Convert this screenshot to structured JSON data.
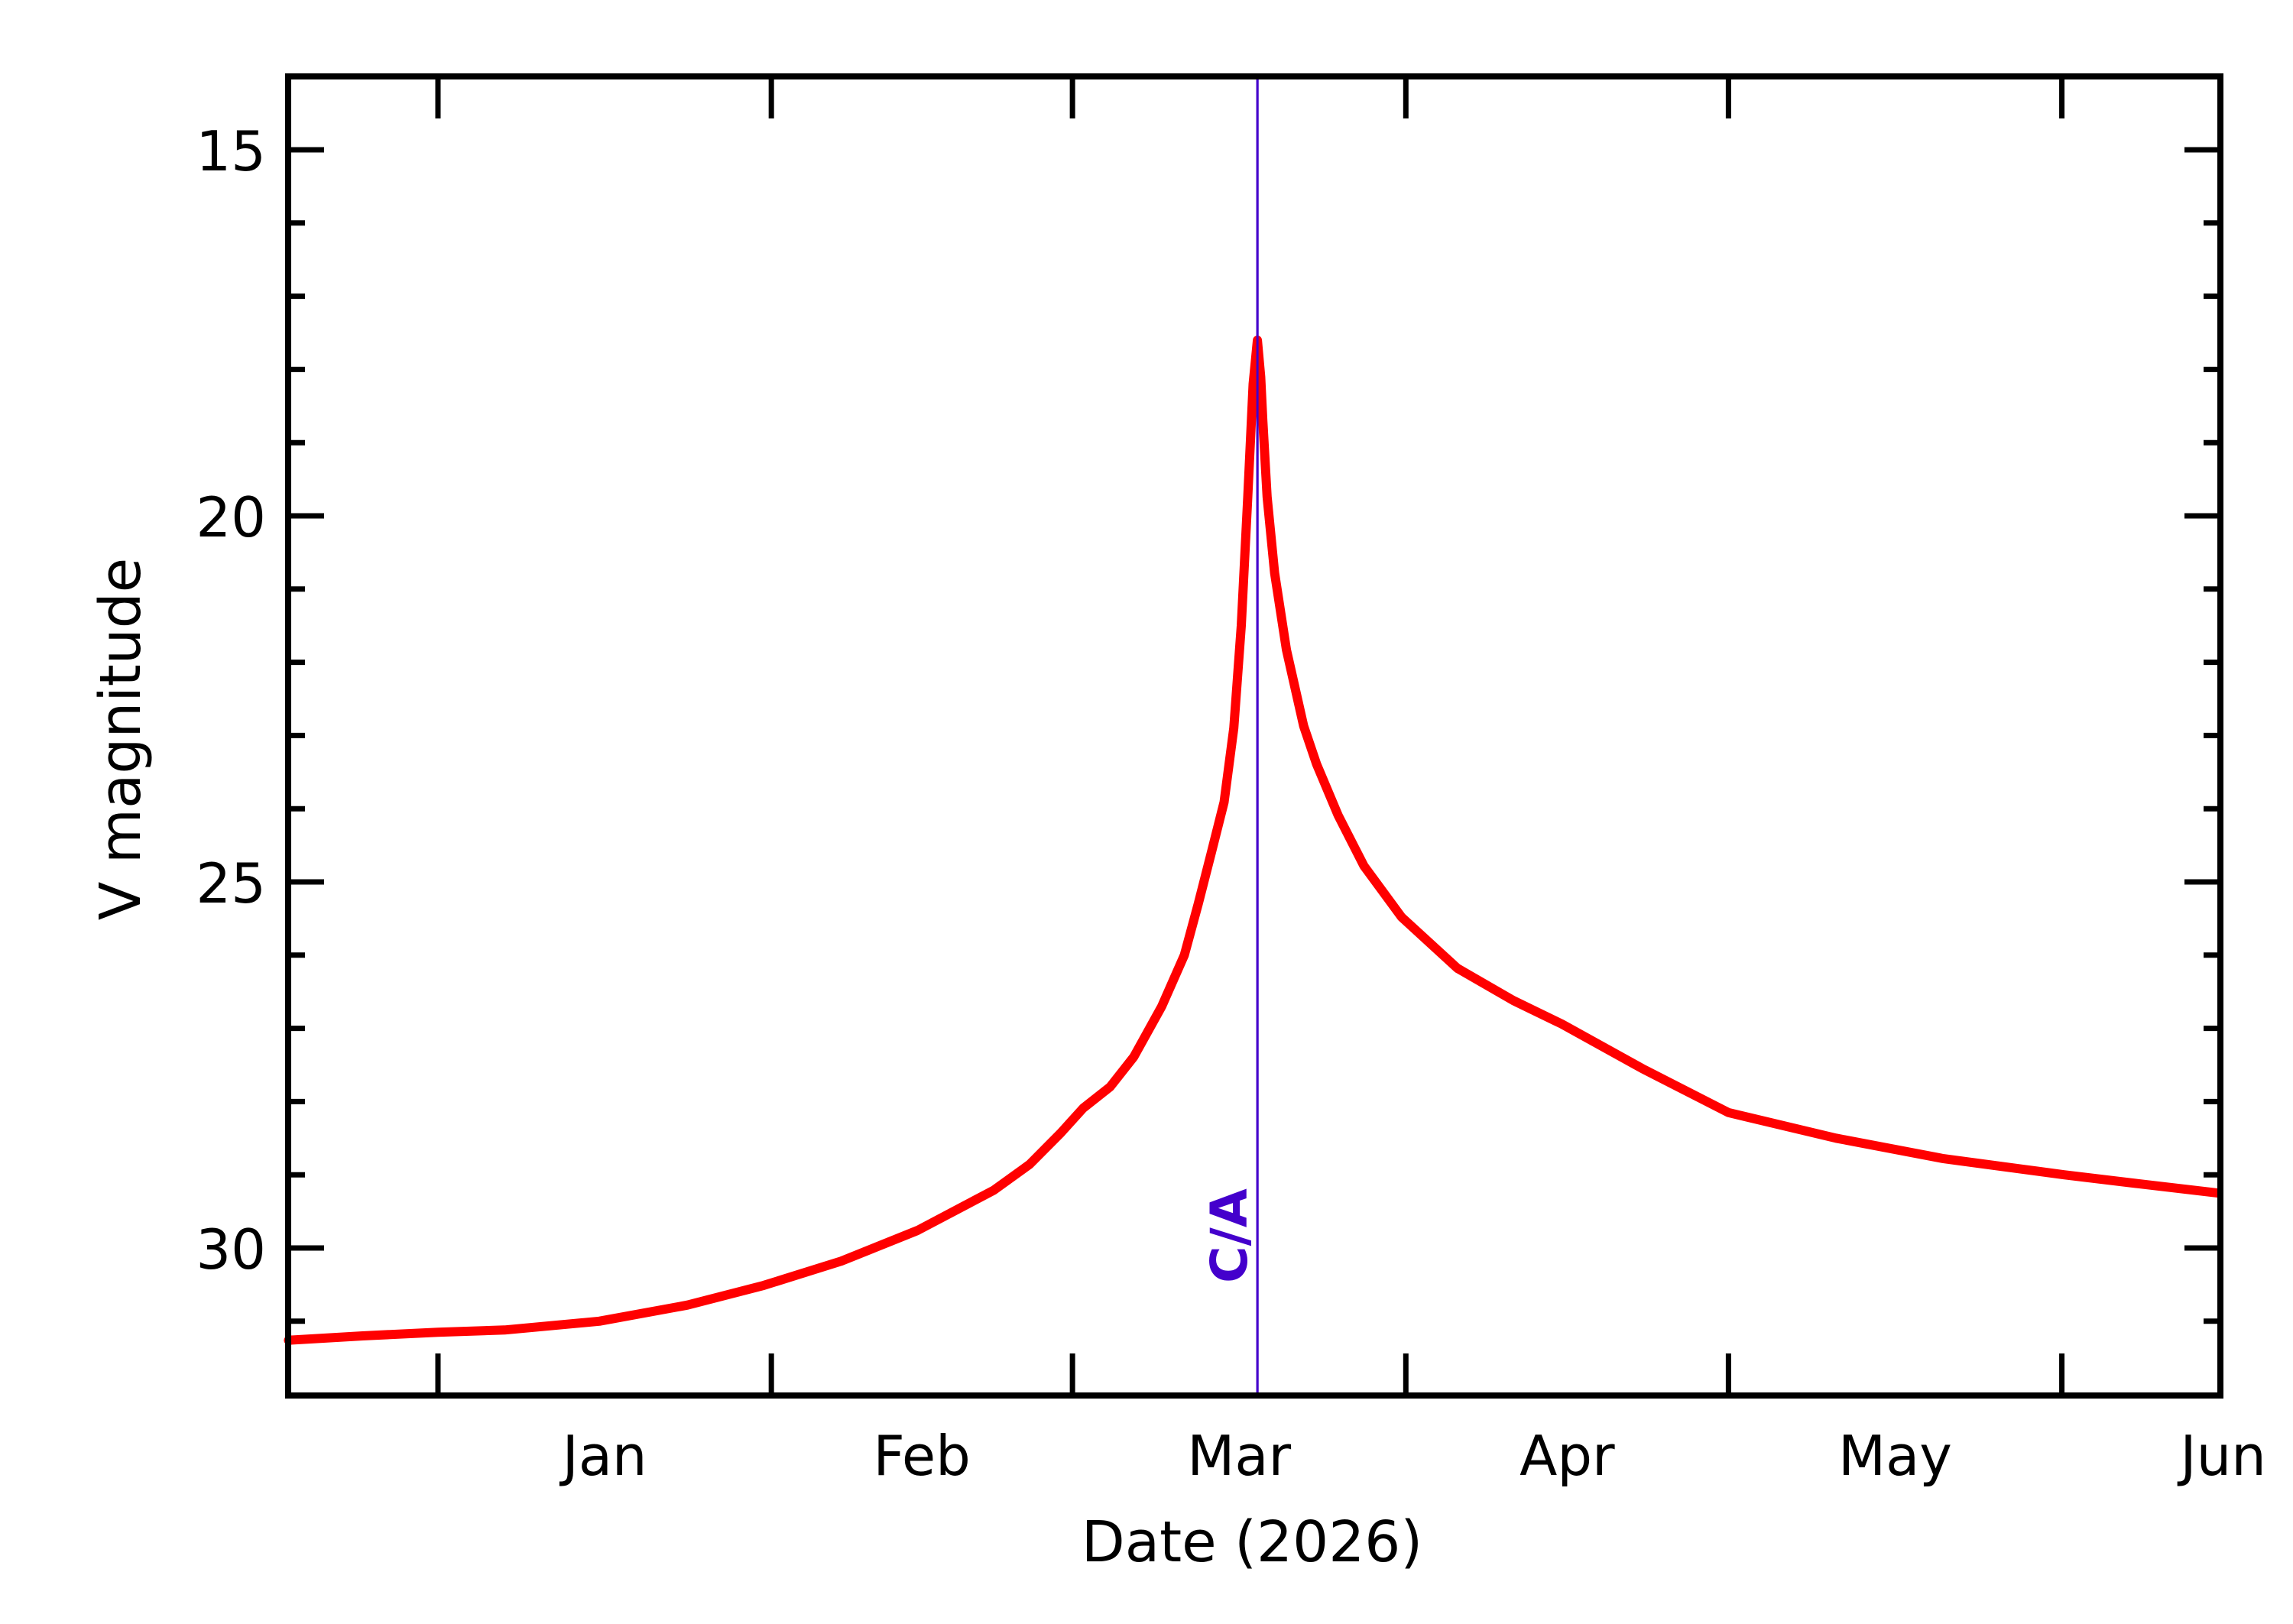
{
  "chart_data": {
    "type": "line",
    "title": "",
    "xlabel": "Date (2026)",
    "ylabel": "V magnitude",
    "y_inverted": true,
    "ylim": [
      32,
      14
    ],
    "xlim_dates": [
      "2025-12-18",
      "2026-06-16"
    ],
    "grid": false,
    "legend": null,
    "x_ticks": [
      {
        "date": "2026-01-01",
        "day": 0
      },
      {
        "date": "2026-02-01",
        "day": 31
      },
      {
        "date": "2026-03-01",
        "day": 59
      },
      {
        "date": "2026-04-01",
        "day": 90
      },
      {
        "date": "2026-05-01",
        "day": 120
      },
      {
        "date": "2026-06-01",
        "day": 151
      }
    ],
    "x_tick_labels": [
      {
        "label": "Jan",
        "day": 15.5
      },
      {
        "label": "Feb",
        "day": 45
      },
      {
        "label": "Mar",
        "day": 74.5
      },
      {
        "label": "Apr",
        "day": 105
      },
      {
        "label": "May",
        "day": 135.5
      },
      {
        "label": "Jun",
        "day": 166
      }
    ],
    "y_major_ticks": [
      15,
      20,
      25,
      30
    ],
    "y_minor_step": 1,
    "annotations": [
      {
        "type": "vline",
        "label": "C/A",
        "date": "2026-03-18",
        "day": 76.2,
        "color": "#4400CC"
      }
    ],
    "series": [
      {
        "name": "V magnitude",
        "color": "#FF0000",
        "x_unit": "days since 2026-01-01",
        "x": [
          -13.9,
          -7,
          0,
          6.2,
          15,
          23.2,
          30.3,
          37.5,
          44.6,
          51.7,
          55,
          57.9,
          60.0,
          62.5,
          64.7,
          67.3,
          69.4,
          70.7,
          71.9,
          73.1,
          74.0,
          74.7,
          75.3,
          75.8,
          76.2,
          76.5,
          76.7,
          77.1,
          77.8,
          78.9,
          80.5,
          81.7,
          83.7,
          86.1,
          89.6,
          94.8,
          100,
          104.5,
          112,
          120,
          130,
          140,
          151.2,
          158,
          165.5
        ],
        "y": [
          31.26,
          31.2,
          31.15,
          31.12,
          31.0,
          30.78,
          30.51,
          30.18,
          29.76,
          29.21,
          28.86,
          28.43,
          28.09,
          27.8,
          27.39,
          26.7,
          26.0,
          25.3,
          24.61,
          23.91,
          22.9,
          21.5,
          19.74,
          18.2,
          17.6,
          18.1,
          18.7,
          19.74,
          20.78,
          21.83,
          22.87,
          23.39,
          24.09,
          24.78,
          25.48,
          26.18,
          26.62,
          26.94,
          27.55,
          28.15,
          28.5,
          28.78,
          29.0,
          29.12,
          29.25
        ]
      }
    ]
  },
  "axes": {
    "xlabel": "Date (2026)",
    "ylabel": "V magnitude",
    "ca_label": "C/A",
    "y_tick_labels": [
      "15",
      "20",
      "25",
      "30"
    ]
  },
  "colors": {
    "curve": "#FF0000",
    "ca_line": "#4400CC",
    "axes": "#000000",
    "background": "#FFFFFF"
  }
}
